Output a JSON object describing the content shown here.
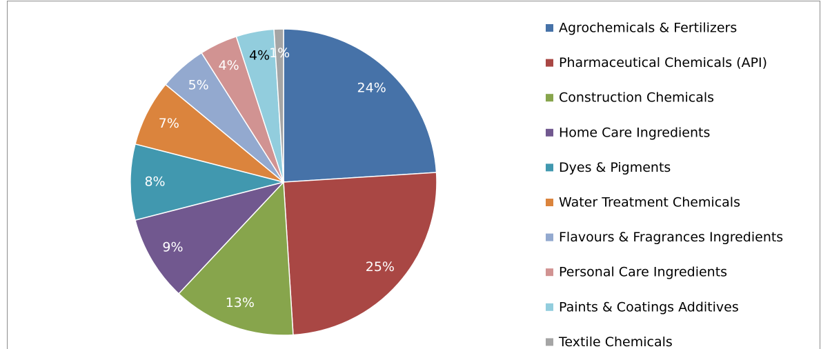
{
  "chart_data": {
    "type": "pie",
    "categories": [
      "Agrochemicals & Fertilizers",
      "Pharmaceutical Chemicals (API)",
      "Construction Chemicals",
      "Home Care Ingredients",
      "Dyes & Pigments",
      "Water Treatment Chemicals",
      "Flavours & Fragrances Ingredients",
      "Personal Care Ingredients",
      "Paints & Coatings Additives",
      "Textile Chemicals"
    ],
    "values": [
      24,
      25,
      13,
      9,
      8,
      7,
      5,
      4,
      4,
      1
    ],
    "value_labels": [
      "24%",
      "25%",
      "13%",
      "9%",
      "8%",
      "7%",
      "5%",
      "4%",
      "4%",
      "1%"
    ],
    "colors": [
      "#4672a8",
      "#a94744",
      "#87a54c",
      "#71588f",
      "#4198af",
      "#db843d",
      "#93a9cf",
      "#d19392",
      "#92cddd",
      "#a5a5a5"
    ],
    "label_colors": [
      "#ffffff",
      "#ffffff",
      "#ffffff",
      "#ffffff",
      "#ffffff",
      "#ffffff",
      "#ffffff",
      "#ffffff",
      "#000000",
      "#ffffff"
    ],
    "legend": "right"
  }
}
